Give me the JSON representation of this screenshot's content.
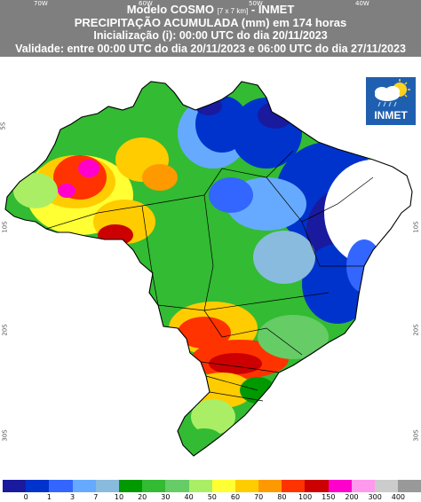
{
  "header": {
    "title_main": "Modelo COSMO",
    "title_res": "[7 x 7 km]",
    "title_suffix": "- INMET",
    "line2": "PRECIPITAÇÃO ACUMULADA (mm) em 174 horas",
    "line3": "Inicialização (i): 00:00 UTC do dia 20/11/2023",
    "line4": "Validade: entre 00:00 UTC do dia 20/11/2023 e 06:00 UTC do dia 27/11/2023",
    "background_color": "#7f7f7f"
  },
  "axes": {
    "lon_labels": [
      "70W",
      "60W",
      "50W",
      "40W"
    ],
    "lat_labels_left": [
      "5S",
      "10S",
      "20S",
      "30S"
    ],
    "lat_labels_right": [
      "10S",
      "20S",
      "30S"
    ]
  },
  "logo": {
    "text": "INMET",
    "icon": "sun-cloud-rain-icon"
  },
  "legend": {
    "colors": [
      "#1a1a9e",
      "#0033cc",
      "#3366ff",
      "#66aaff",
      "#88bbdd",
      "#009900",
      "#33bb33",
      "#66cc66",
      "#aaee66",
      "#ffff33",
      "#ffcc00",
      "#ff9900",
      "#ff3300",
      "#cc0000",
      "#ff00cc",
      "#ff99ee",
      "#cccccc",
      "#999999"
    ],
    "ticks": [
      "0",
      "1",
      "3",
      "7",
      "10",
      "20",
      "30",
      "40",
      "50",
      "60",
      "70",
      "80",
      "100",
      "150",
      "200",
      "300",
      "400"
    ]
  },
  "map": {
    "region": "Brasil",
    "colors": {
      "outside": "#ffffff",
      "country_border": "#000000",
      "state_border": "#000000"
    }
  }
}
